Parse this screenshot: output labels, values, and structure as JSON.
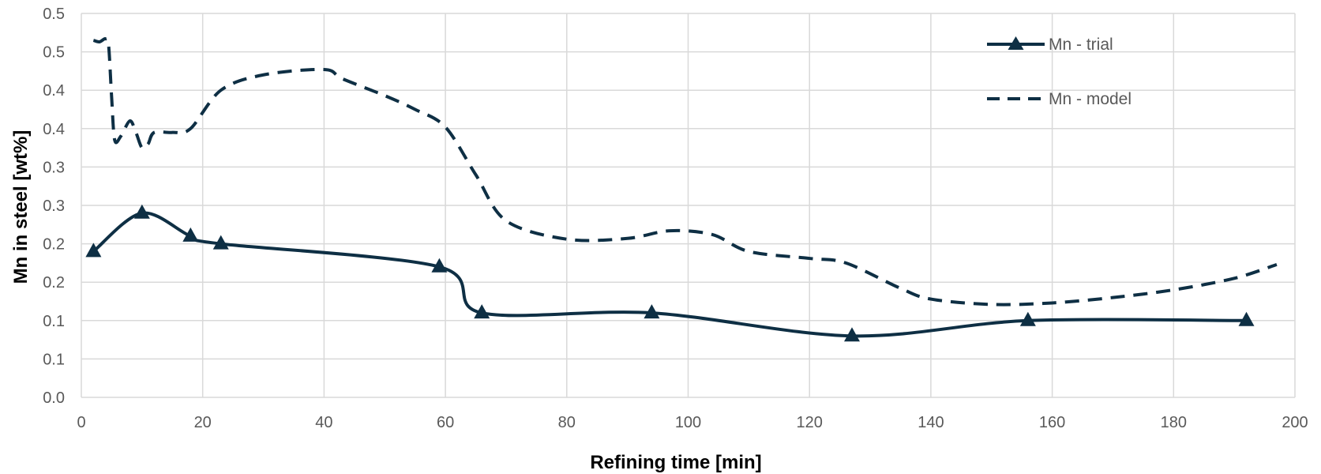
{
  "chart_data": {
    "type": "line",
    "xlabel": "Refining time [min]",
    "ylabel": "Mn in steel [wt%]",
    "xlim": [
      0,
      200
    ],
    "ylim": [
      0,
      0.5
    ],
    "x_ticks": [
      "0",
      "20",
      "40",
      "60",
      "80",
      "100",
      "120",
      "140",
      "160",
      "180",
      "200"
    ],
    "y_ticks": [
      "0.0",
      "0.1",
      "0.1",
      "0.2",
      "0.2",
      "0.3",
      "0.3",
      "0.4",
      "0.4",
      "0.5",
      "0.5"
    ],
    "grid": true,
    "legend_position": "top-right",
    "line_color": "#0e2f44",
    "series": [
      {
        "name": "Mn - trial",
        "style": "solid-with-triangle-markers",
        "points": [
          {
            "x": 2,
            "y": 0.19
          },
          {
            "x": 10,
            "y": 0.24
          },
          {
            "x": 18,
            "y": 0.21
          },
          {
            "x": 23,
            "y": 0.2
          },
          {
            "x": 59,
            "y": 0.17
          },
          {
            "x": 66,
            "y": 0.11
          },
          {
            "x": 94,
            "y": 0.11
          },
          {
            "x": 127,
            "y": 0.08
          },
          {
            "x": 156,
            "y": 0.1
          },
          {
            "x": 192,
            "y": 0.1
          }
        ]
      },
      {
        "name": "Mn - model",
        "style": "dashed",
        "points": [
          {
            "x": 2,
            "y": 0.465
          },
          {
            "x": 3,
            "y": 0.463
          },
          {
            "x": 4,
            "y": 0.467
          },
          {
            "x": 4.5,
            "y": 0.458
          },
          {
            "x": 5,
            "y": 0.39
          },
          {
            "x": 5.5,
            "y": 0.335
          },
          {
            "x": 6.5,
            "y": 0.34
          },
          {
            "x": 8,
            "y": 0.36
          },
          {
            "x": 9,
            "y": 0.345
          },
          {
            "x": 10,
            "y": 0.325
          },
          {
            "x": 11,
            "y": 0.33
          },
          {
            "x": 12,
            "y": 0.345
          },
          {
            "x": 15,
            "y": 0.345
          },
          {
            "x": 18,
            "y": 0.35
          },
          {
            "x": 23,
            "y": 0.4
          },
          {
            "x": 30,
            "y": 0.42
          },
          {
            "x": 40,
            "y": 0.427
          },
          {
            "x": 43,
            "y": 0.415
          },
          {
            "x": 50,
            "y": 0.393
          },
          {
            "x": 55,
            "y": 0.375
          },
          {
            "x": 60,
            "y": 0.352
          },
          {
            "x": 65,
            "y": 0.29
          },
          {
            "x": 70,
            "y": 0.23
          },
          {
            "x": 80,
            "y": 0.206
          },
          {
            "x": 90,
            "y": 0.207
          },
          {
            "x": 97,
            "y": 0.217
          },
          {
            "x": 104,
            "y": 0.212
          },
          {
            "x": 110,
            "y": 0.19
          },
          {
            "x": 120,
            "y": 0.181
          },
          {
            "x": 126,
            "y": 0.175
          },
          {
            "x": 135,
            "y": 0.142
          },
          {
            "x": 140,
            "y": 0.128
          },
          {
            "x": 150,
            "y": 0.121
          },
          {
            "x": 160,
            "y": 0.123
          },
          {
            "x": 170,
            "y": 0.13
          },
          {
            "x": 180,
            "y": 0.14
          },
          {
            "x": 190,
            "y": 0.155
          },
          {
            "x": 197,
            "y": 0.173
          }
        ]
      }
    ]
  }
}
